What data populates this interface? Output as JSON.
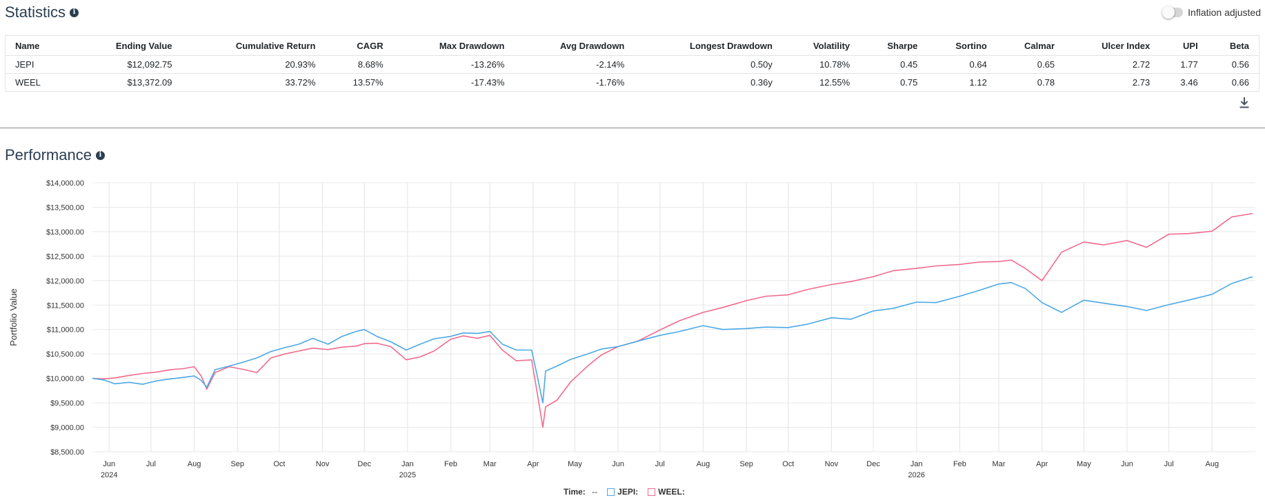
{
  "statistics": {
    "title": "Statistics",
    "inflation_label": "Inflation adjusted",
    "headers": [
      "Name",
      "Ending Value",
      "Cumulative Return",
      "CAGR",
      "Max Drawdown",
      "Avg Drawdown",
      "Longest Drawdown",
      "Volatility",
      "Sharpe",
      "Sortino",
      "Calmar",
      "Ulcer Index",
      "UPI",
      "Beta"
    ],
    "rows": [
      [
        "JEPI",
        "$12,092.75",
        "20.93%",
        "8.68%",
        "-13.26%",
        "-2.14%",
        "0.50y",
        "10.78%",
        "0.45",
        "0.64",
        "0.65",
        "2.72",
        "1.77",
        "0.56"
      ],
      [
        "WEEL",
        "$13,372.09",
        "33.72%",
        "13.57%",
        "-17.43%",
        "-1.76%",
        "0.36y",
        "12.55%",
        "0.75",
        "1.12",
        "0.78",
        "2.73",
        "3.46",
        "0.66"
      ]
    ]
  },
  "performance": {
    "title": "Performance"
  },
  "legend": {
    "time_label": "Time:",
    "time_value": "--",
    "jepi_label": "JEPI:",
    "weel_label": "WEEL:"
  },
  "colors": {
    "jepi": "#4aa8e6",
    "weel": "#f06a8d",
    "grid": "#e8e8e8"
  },
  "chart_data": {
    "type": "line",
    "ylabel": "Portfolio Value",
    "ylim": [
      8500,
      14000
    ],
    "y_ticks": [
      "$14,000.00",
      "$13,500.00",
      "$13,000.00",
      "$12,500.00",
      "$12,000.00",
      "$11,500.00",
      "$11,000.00",
      "$10,500.00",
      "$10,000.00",
      "$9,500.00",
      "$9,000.00",
      "$8,500.00"
    ],
    "y_tick_values": [
      14000,
      13500,
      13000,
      12500,
      12000,
      11500,
      11000,
      10500,
      10000,
      9500,
      9000,
      8500
    ],
    "x_range": [
      "2024-05-20",
      "2026-09-01"
    ],
    "x_ticks": [
      {
        "date": "2024-06-01",
        "label": "Jun",
        "year": "2024"
      },
      {
        "date": "2024-07-01",
        "label": "Jul",
        "year": ""
      },
      {
        "date": "2024-08-01",
        "label": "Aug",
        "year": ""
      },
      {
        "date": "2024-09-01",
        "label": "Sep",
        "year": ""
      },
      {
        "date": "2024-10-01",
        "label": "Oct",
        "year": ""
      },
      {
        "date": "2024-11-01",
        "label": "Nov",
        "year": ""
      },
      {
        "date": "2024-12-01",
        "label": "Dec",
        "year": ""
      },
      {
        "date": "2025-01-01",
        "label": "Jan",
        "year": "2025"
      },
      {
        "date": "2025-02-01",
        "label": "Feb",
        "year": ""
      },
      {
        "date": "2025-03-01",
        "label": "Mar",
        "year": ""
      },
      {
        "date": "2025-04-01",
        "label": "Apr",
        "year": ""
      },
      {
        "date": "2025-05-01",
        "label": "May",
        "year": ""
      },
      {
        "date": "2025-06-01",
        "label": "Jun",
        "year": ""
      },
      {
        "date": "2025-07-01",
        "label": "Jul",
        "year": ""
      },
      {
        "date": "2025-08-01",
        "label": "Aug",
        "year": ""
      },
      {
        "date": "2025-09-01",
        "label": "Sep",
        "year": ""
      },
      {
        "date": "2025-10-01",
        "label": "Oct",
        "year": ""
      },
      {
        "date": "2025-11-01",
        "label": "Nov",
        "year": ""
      },
      {
        "date": "2025-12-01",
        "label": "Dec",
        "year": ""
      },
      {
        "date": "2026-01-01",
        "label": "Jan",
        "year": "2026"
      },
      {
        "date": "2026-02-01",
        "label": "Feb",
        "year": ""
      },
      {
        "date": "2026-03-01",
        "label": "Mar",
        "year": ""
      },
      {
        "date": "2026-04-01",
        "label": "Apr",
        "year": ""
      },
      {
        "date": "2026-05-01",
        "label": "May",
        "year": ""
      },
      {
        "date": "2026-06-01",
        "label": "Jun",
        "year": ""
      },
      {
        "date": "2026-07-01",
        "label": "Jul",
        "year": ""
      },
      {
        "date": "2026-08-01",
        "label": "Aug",
        "year": ""
      }
    ],
    "series": [
      {
        "name": "JEPI",
        "x": [
          "2024-05-20",
          "2024-05-28",
          "2024-06-05",
          "2024-06-15",
          "2024-06-25",
          "2024-07-05",
          "2024-07-15",
          "2024-07-24",
          "2024-08-01",
          "2024-08-06",
          "2024-08-10",
          "2024-08-16",
          "2024-08-26",
          "2024-09-06",
          "2024-09-15",
          "2024-09-25",
          "2024-10-05",
          "2024-10-15",
          "2024-10-25",
          "2024-11-05",
          "2024-11-15",
          "2024-11-25",
          "2024-12-01",
          "2024-12-10",
          "2024-12-20",
          "2024-12-31",
          "2025-01-10",
          "2025-01-20",
          "2025-02-01",
          "2025-02-10",
          "2025-02-20",
          "2025-03-01",
          "2025-03-10",
          "2025-03-20",
          "2025-03-31",
          "2025-04-04",
          "2025-04-08",
          "2025-04-10",
          "2025-04-18",
          "2025-04-28",
          "2025-05-10",
          "2025-05-20",
          "2025-06-01",
          "2025-06-15",
          "2025-07-01",
          "2025-07-15",
          "2025-08-01",
          "2025-08-15",
          "2025-09-01",
          "2025-09-15",
          "2025-10-01",
          "2025-10-15",
          "2025-11-01",
          "2025-11-15",
          "2025-12-01",
          "2025-12-15",
          "2026-01-01",
          "2026-01-15",
          "2026-02-01",
          "2026-02-15",
          "2026-03-01",
          "2026-03-10",
          "2026-03-20",
          "2026-04-01",
          "2026-04-15",
          "2026-05-01",
          "2026-05-15",
          "2026-06-01",
          "2026-06-15",
          "2026-07-01",
          "2026-07-15",
          "2026-08-01",
          "2026-08-15",
          "2026-08-30"
        ],
        "values": [
          10000,
          9970,
          9890,
          9920,
          9880,
          9950,
          9990,
          10020,
          10050,
          9960,
          9820,
          10180,
          10250,
          10340,
          10420,
          10550,
          10630,
          10700,
          10820,
          10700,
          10860,
          10960,
          11000,
          10860,
          10750,
          10580,
          10700,
          10810,
          10860,
          10930,
          10920,
          10960,
          10700,
          10580,
          10580,
          10050,
          9500,
          10150,
          10250,
          10390,
          10500,
          10600,
          10650,
          10760,
          10880,
          10960,
          11080,
          11000,
          11020,
          11050,
          11040,
          11110,
          11240,
          11210,
          11380,
          11430,
          11560,
          11550,
          11680,
          11800,
          11930,
          11960,
          11840,
          11550,
          11350,
          11600,
          11540,
          11470,
          11390,
          11510,
          11600,
          11720,
          11940,
          12080
        ]
      },
      {
        "name": "WEEL",
        "x": [
          "2024-05-20",
          "2024-05-28",
          "2024-06-05",
          "2024-06-15",
          "2024-06-25",
          "2024-07-05",
          "2024-07-15",
          "2024-07-24",
          "2024-08-01",
          "2024-08-06",
          "2024-08-10",
          "2024-08-16",
          "2024-08-26",
          "2024-09-06",
          "2024-09-15",
          "2024-09-25",
          "2024-10-05",
          "2024-10-15",
          "2024-10-25",
          "2024-11-05",
          "2024-11-15",
          "2024-11-25",
          "2024-12-01",
          "2024-12-10",
          "2024-12-20",
          "2024-12-31",
          "2025-01-10",
          "2025-01-20",
          "2025-02-01",
          "2025-02-10",
          "2025-02-20",
          "2025-03-01",
          "2025-03-10",
          "2025-03-20",
          "2025-03-31",
          "2025-04-04",
          "2025-04-08",
          "2025-04-10",
          "2025-04-18",
          "2025-04-28",
          "2025-05-10",
          "2025-05-20",
          "2025-06-01",
          "2025-06-15",
          "2025-07-01",
          "2025-07-15",
          "2025-08-01",
          "2025-08-15",
          "2025-09-01",
          "2025-09-15",
          "2025-10-01",
          "2025-10-15",
          "2025-11-01",
          "2025-11-15",
          "2025-12-01",
          "2025-12-15",
          "2026-01-01",
          "2026-01-15",
          "2026-02-01",
          "2026-02-15",
          "2026-03-01",
          "2026-03-10",
          "2026-03-20",
          "2026-04-01",
          "2026-04-15",
          "2026-05-01",
          "2026-05-15",
          "2026-06-01",
          "2026-06-15",
          "2026-07-01",
          "2026-07-15",
          "2026-08-01",
          "2026-08-15",
          "2026-08-30"
        ],
        "values": [
          10000,
          9990,
          10010,
          10060,
          10100,
          10130,
          10180,
          10200,
          10240,
          10050,
          9780,
          10120,
          10240,
          10180,
          10120,
          10420,
          10500,
          10560,
          10620,
          10590,
          10640,
          10660,
          10710,
          10720,
          10650,
          10380,
          10440,
          10560,
          10800,
          10870,
          10820,
          10880,
          10580,
          10360,
          10380,
          9700,
          9000,
          9420,
          9550,
          9930,
          10250,
          10480,
          10650,
          10760,
          10990,
          11180,
          11350,
          11450,
          11590,
          11680,
          11710,
          11820,
          11920,
          11980,
          12080,
          12200,
          12250,
          12300,
          12330,
          12380,
          12390,
          12420,
          12250,
          12000,
          12580,
          12790,
          12730,
          12820,
          12680,
          12950,
          12960,
          13010,
          13300,
          13372
        ]
      }
    ]
  }
}
